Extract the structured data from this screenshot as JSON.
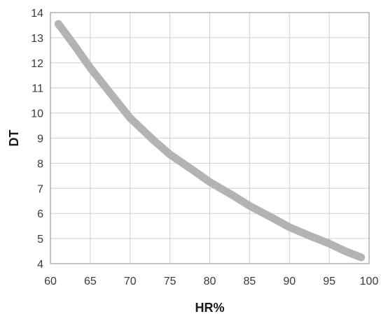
{
  "chart_data": {
    "type": "line",
    "title": "",
    "xlabel": "HR%",
    "ylabel": "DT",
    "xlim": [
      60,
      100
    ],
    "ylim": [
      4,
      14
    ],
    "xticks": [
      60,
      65,
      70,
      75,
      80,
      85,
      90,
      95,
      100
    ],
    "yticks": [
      4,
      5,
      6,
      7,
      8,
      9,
      10,
      11,
      12,
      13,
      14
    ],
    "grid": true,
    "legend": "none",
    "series": [
      {
        "color": "#b3b3b3",
        "x": [
          61,
          63,
          65,
          67,
          70,
          73,
          75,
          78,
          80,
          83,
          85,
          88,
          90,
          93,
          95,
          97,
          99
        ],
        "y": [
          13.55,
          12.7,
          11.8,
          11.0,
          9.8,
          8.9,
          8.35,
          7.7,
          7.25,
          6.7,
          6.3,
          5.8,
          5.45,
          5.05,
          4.8,
          4.5,
          4.25
        ]
      }
    ]
  }
}
